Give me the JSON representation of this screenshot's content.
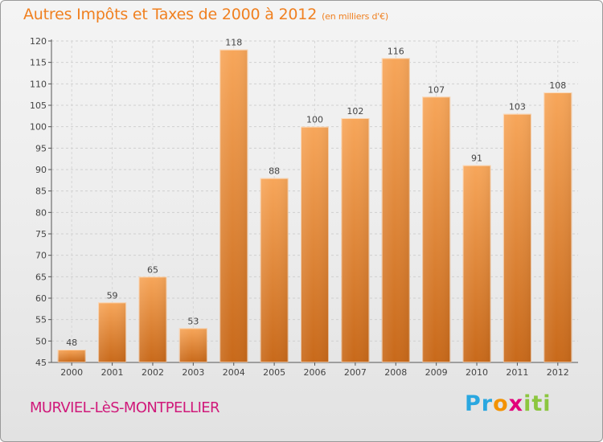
{
  "header": {
    "title": "Autres Impôts et Taxes de 2000 à 2012",
    "unit": "(en milliers d'€)"
  },
  "footer": {
    "location": "MURVIEL-LèS-MONTPELLIER",
    "logo": [
      "Pr",
      "o",
      "x",
      "iti"
    ]
  },
  "colors": {
    "bar_top": "#f7a65a",
    "bar_bottom": "#c8691a",
    "accent": "#f08020",
    "location": "#d0197a"
  },
  "chart_data": {
    "type": "bar",
    "categories": [
      "2000",
      "2001",
      "2002",
      "2003",
      "2004",
      "2005",
      "2006",
      "2007",
      "2008",
      "2009",
      "2010",
      "2011",
      "2012"
    ],
    "values": [
      48,
      59,
      65,
      53,
      118,
      88,
      100,
      102,
      116,
      107,
      91,
      103,
      108
    ],
    "ylim": [
      45,
      120
    ],
    "yticks": [
      45,
      50,
      55,
      60,
      65,
      70,
      75,
      80,
      85,
      90,
      95,
      100,
      105,
      110,
      115,
      120
    ],
    "grid": true,
    "data_labels": true
  }
}
